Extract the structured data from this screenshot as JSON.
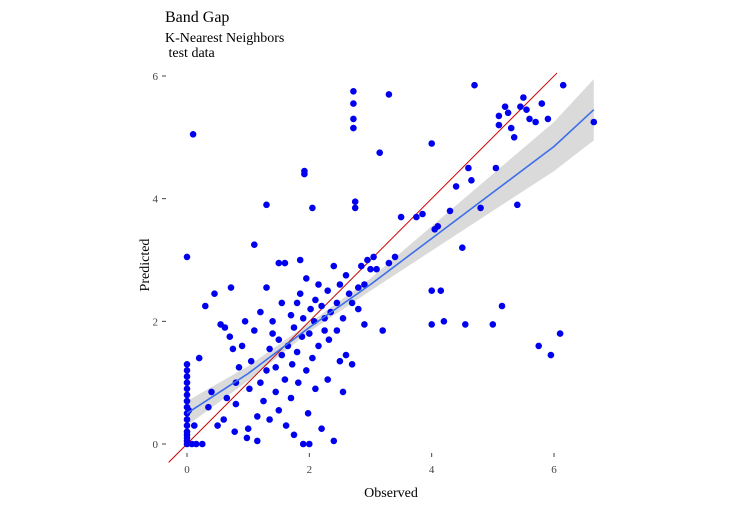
{
  "chart_data": {
    "type": "scatter",
    "title": "Band Gap",
    "subtitle_lines": [
      "K-Nearest Neighbors",
      " test data"
    ],
    "xlabel": "Observed",
    "ylabel": "Predicted",
    "xlim": [
      -0.3,
      6.7
    ],
    "ylim": [
      -0.3,
      6.1
    ],
    "x_ticks": [
      0,
      2,
      4,
      6
    ],
    "y_ticks": [
      0,
      2,
      4,
      6
    ],
    "grid": false,
    "colors": {
      "points": "#0000ee",
      "identity_line": "#cc0000",
      "fit_line": "#3d6ee8",
      "confidence_band": "#d3d3d3"
    },
    "identity_line": {
      "slope": 1,
      "intercept": 0
    },
    "fit_line": [
      [
        0.0,
        0.5
      ],
      [
        1.0,
        1.15
      ],
      [
        2.0,
        1.9
      ],
      [
        3.0,
        2.6
      ],
      [
        4.0,
        3.35
      ],
      [
        5.0,
        4.1
      ],
      [
        6.0,
        4.85
      ],
      [
        6.65,
        5.45
      ]
    ],
    "confidence_band": {
      "x": [
        0.0,
        1.0,
        2.0,
        3.0,
        4.0,
        5.0,
        6.0,
        6.65
      ],
      "lower": [
        0.3,
        1.03,
        1.83,
        2.5,
        3.15,
        3.8,
        4.45,
        4.95
      ],
      "upper": [
        0.7,
        1.27,
        1.97,
        2.7,
        3.55,
        4.4,
        5.25,
        5.95
      ]
    },
    "points": [
      [
        0,
        0
      ],
      [
        0,
        0.05
      ],
      [
        0,
        0.1
      ],
      [
        0,
        0.15
      ],
      [
        0,
        0.2
      ],
      [
        0,
        0.3
      ],
      [
        0,
        0.4
      ],
      [
        0,
        0.5
      ],
      [
        0,
        0.6
      ],
      [
        0,
        0.7
      ],
      [
        0,
        0.8
      ],
      [
        0,
        0.9
      ],
      [
        0,
        1.0
      ],
      [
        0,
        1.1
      ],
      [
        0,
        1.2
      ],
      [
        0,
        1.3
      ],
      [
        0,
        3.05
      ],
      [
        0.03,
        0.55
      ],
      [
        0.08,
        0
      ],
      [
        0.12,
        0.3
      ],
      [
        0.1,
        5.05
      ],
      [
        0.15,
        0
      ],
      [
        0.2,
        1.4
      ],
      [
        0.25,
        0
      ],
      [
        0.3,
        2.25
      ],
      [
        0.35,
        0.6
      ],
      [
        0.4,
        0.85
      ],
      [
        0.45,
        2.45
      ],
      [
        0.5,
        0.3
      ],
      [
        0.6,
        0.4
      ],
      [
        0.55,
        1.95
      ],
      [
        0.62,
        1.9
      ],
      [
        0.65,
        0.75
      ],
      [
        0.7,
        1.75
      ],
      [
        0.72,
        2.55
      ],
      [
        0.75,
        1.55
      ],
      [
        0.78,
        0.2
      ],
      [
        0.8,
        0.65
      ],
      [
        0.8,
        1.0
      ],
      [
        0.85,
        1.25
      ],
      [
        0.9,
        1.6
      ],
      [
        0.95,
        2.0
      ],
      [
        0.98,
        0.1
      ],
      [
        1.0,
        0.25
      ],
      [
        1.02,
        0.9
      ],
      [
        1.05,
        1.35
      ],
      [
        1.1,
        1.85
      ],
      [
        1.1,
        3.25
      ],
      [
        1.15,
        0.05
      ],
      [
        1.15,
        0.45
      ],
      [
        1.2,
        2.15
      ],
      [
        1.2,
        1.0
      ],
      [
        1.25,
        0.7
      ],
      [
        1.3,
        1.2
      ],
      [
        1.3,
        2.55
      ],
      [
        1.3,
        3.9
      ],
      [
        1.35,
        1.55
      ],
      [
        1.35,
        0.4
      ],
      [
        1.4,
        1.8
      ],
      [
        1.4,
        2.0
      ],
      [
        1.45,
        0.85
      ],
      [
        1.45,
        1.25
      ],
      [
        1.5,
        1.7
      ],
      [
        1.5,
        2.95
      ],
      [
        1.5,
        0.55
      ],
      [
        1.55,
        1.45
      ],
      [
        1.55,
        2.3
      ],
      [
        1.6,
        1.05
      ],
      [
        1.6,
        2.95
      ],
      [
        1.62,
        0.3
      ],
      [
        1.65,
        1.6
      ],
      [
        1.7,
        2.1
      ],
      [
        1.7,
        0.75
      ],
      [
        1.72,
        1.3
      ],
      [
        1.75,
        1.9
      ],
      [
        1.75,
        0.15
      ],
      [
        1.8,
        2.3
      ],
      [
        1.8,
        1.5
      ],
      [
        1.82,
        1.0
      ],
      [
        1.85,
        2.45
      ],
      [
        1.85,
        3.0
      ],
      [
        1.88,
        1.75
      ],
      [
        1.9,
        0
      ],
      [
        1.9,
        2.05
      ],
      [
        1.92,
        4.45
      ],
      [
        1.92,
        4.4
      ],
      [
        1.95,
        1.2
      ],
      [
        1.95,
        2.7
      ],
      [
        1.98,
        0.5
      ],
      [
        2.0,
        1.8
      ],
      [
        2.0,
        0
      ],
      [
        2.02,
        2.2
      ],
      [
        2.05,
        3.85
      ],
      [
        2.05,
        1.4
      ],
      [
        2.08,
        2.0
      ],
      [
        2.1,
        2.35
      ],
      [
        2.1,
        0.9
      ],
      [
        2.15,
        1.6
      ],
      [
        2.15,
        2.6
      ],
      [
        2.2,
        2.25
      ],
      [
        2.2,
        0.25
      ],
      [
        2.25,
        1.85
      ],
      [
        2.25,
        2.05
      ],
      [
        2.3,
        2.5
      ],
      [
        2.3,
        1.05
      ],
      [
        2.32,
        1.7
      ],
      [
        2.35,
        2.15
      ],
      [
        2.4,
        2.9
      ],
      [
        2.4,
        0.05
      ],
      [
        2.45,
        1.85
      ],
      [
        2.45,
        2.3
      ],
      [
        2.5,
        2.6
      ],
      [
        2.5,
        1.35
      ],
      [
        2.55,
        0.85
      ],
      [
        2.55,
        2.05
      ],
      [
        2.6,
        2.75
      ],
      [
        2.6,
        1.45
      ],
      [
        2.65,
        2.45
      ],
      [
        2.7,
        2.3
      ],
      [
        2.7,
        1.3
      ],
      [
        2.72,
        5.3
      ],
      [
        2.72,
        5.15
      ],
      [
        2.72,
        5.55
      ],
      [
        2.72,
        5.75
      ],
      [
        2.75,
        3.95
      ],
      [
        2.75,
        3.85
      ],
      [
        2.8,
        2.55
      ],
      [
        2.8,
        2.2
      ],
      [
        2.85,
        2.9
      ],
      [
        2.9,
        2.6
      ],
      [
        2.9,
        1.95
      ],
      [
        2.95,
        3.0
      ],
      [
        3.0,
        2.85
      ],
      [
        3.05,
        3.05
      ],
      [
        3.1,
        2.85
      ],
      [
        3.15,
        4.75
      ],
      [
        3.2,
        1.85
      ],
      [
        3.3,
        5.7
      ],
      [
        3.3,
        2.95
      ],
      [
        3.4,
        3.05
      ],
      [
        3.5,
        3.7
      ],
      [
        3.75,
        3.7
      ],
      [
        3.85,
        3.75
      ],
      [
        4.0,
        4.9
      ],
      [
        4.0,
        2.5
      ],
      [
        4.0,
        1.95
      ],
      [
        4.05,
        3.5
      ],
      [
        4.1,
        3.55
      ],
      [
        4.15,
        2.5
      ],
      [
        4.2,
        2.0
      ],
      [
        4.3,
        3.8
      ],
      [
        4.4,
        4.2
      ],
      [
        4.5,
        3.2
      ],
      [
        4.55,
        1.95
      ],
      [
        4.6,
        4.5
      ],
      [
        4.65,
        4.3
      ],
      [
        4.7,
        5.85
      ],
      [
        4.8,
        3.85
      ],
      [
        5.0,
        1.95
      ],
      [
        5.05,
        4.5
      ],
      [
        5.1,
        5.2
      ],
      [
        5.1,
        5.35
      ],
      [
        5.15,
        2.25
      ],
      [
        5.2,
        5.5
      ],
      [
        5.25,
        5.4
      ],
      [
        5.3,
        5.15
      ],
      [
        5.35,
        5.0
      ],
      [
        5.4,
        3.9
      ],
      [
        5.45,
        5.5
      ],
      [
        5.5,
        5.65
      ],
      [
        5.55,
        5.45
      ],
      [
        5.6,
        5.3
      ],
      [
        5.7,
        5.25
      ],
      [
        5.75,
        1.6
      ],
      [
        5.8,
        5.55
      ],
      [
        5.9,
        5.3
      ],
      [
        5.95,
        1.45
      ],
      [
        6.1,
        1.8
      ],
      [
        6.15,
        5.85
      ],
      [
        6.65,
        5.25
      ]
    ]
  }
}
